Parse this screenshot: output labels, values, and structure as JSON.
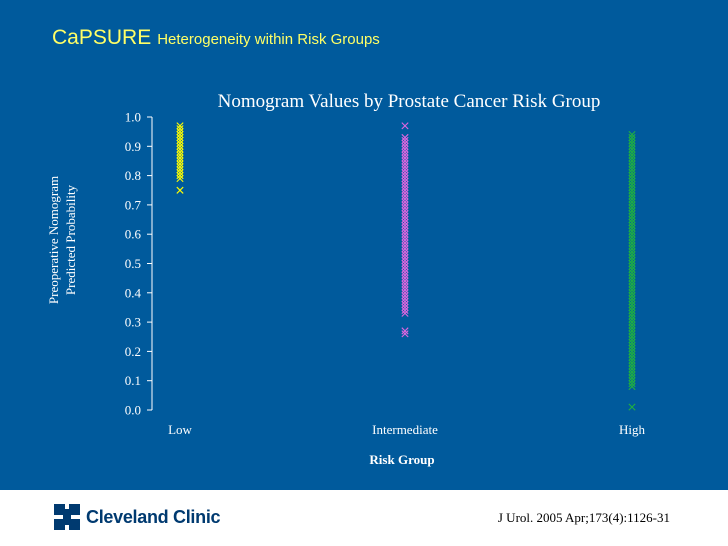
{
  "slide": {
    "title_main": "CaPSURE",
    "title_sub": "Heterogeneity within Risk Groups"
  },
  "footer": {
    "logo_text": "Cleveland Clinic",
    "citation": "J Urol. 2005 Apr;173(4):1126-31"
  },
  "colors": {
    "background": "#005a9c",
    "title": "#ffff66",
    "low": "#ffff00",
    "intermediate": "#e066e0",
    "high": "#20b040",
    "logo": "#003a70"
  },
  "chart_data": {
    "type": "scatter",
    "title": "Nomogram Values by Prostate Cancer Risk Group",
    "xlabel": "Risk Group",
    "ylabel_lines": [
      "Preoperative Nomogram",
      "Predicted Probability"
    ],
    "categories": [
      "Low",
      "Intermediate",
      "High"
    ],
    "ylim": [
      0,
      1
    ],
    "yticks": [
      "0.0",
      "0.1",
      "0.2",
      "0.3",
      "0.4",
      "0.5",
      "0.6",
      "0.7",
      "0.8",
      "0.9",
      "1.0"
    ],
    "marker": "x",
    "grid": false,
    "series": [
      {
        "category": "Low",
        "color": "#ffff00",
        "min": 0.79,
        "max": 0.97,
        "outliers": [
          0.75
        ],
        "step": 0.01
      },
      {
        "category": "Intermediate",
        "color": "#e066e0",
        "min": 0.33,
        "max": 0.93,
        "outliers": [
          0.97,
          0.27,
          0.26
        ],
        "step": 0.01
      },
      {
        "category": "High",
        "color": "#20b040",
        "min": 0.08,
        "max": 0.94,
        "outliers": [
          0.01
        ],
        "step": 0.01
      }
    ]
  }
}
